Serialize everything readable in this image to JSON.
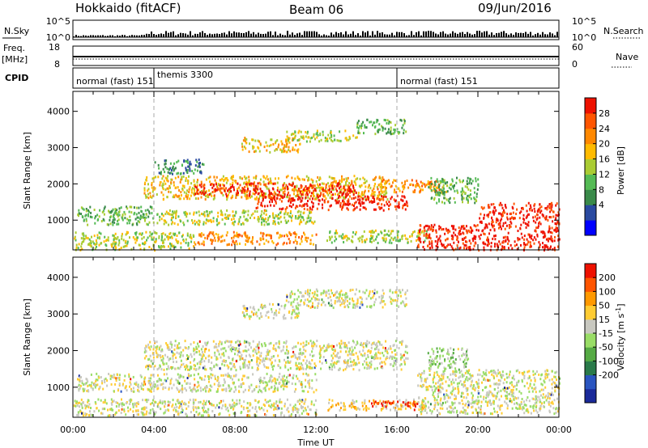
{
  "header": {
    "station": "Hokkaido (fitACF)",
    "beam": "Beam 06",
    "date": "09/Jun/2016"
  },
  "panels": {
    "nsky_label": "N.Sky",
    "nsearch_label": "N.Search",
    "nsky_ticks": [
      "10^5",
      "10^0"
    ],
    "nsearch_ticks": [
      "10^5",
      "10^0"
    ],
    "freq_label": "Freq.",
    "freq_unit": "[MHz]",
    "freq_ticks": [
      "18",
      "8"
    ],
    "nave_label": "Nave",
    "nave_ticks": [
      "60",
      "0"
    ],
    "cpid_label": "CPID",
    "cpid_segments": [
      {
        "label": "normal (fast) 151",
        "start_hour": 0
      },
      {
        "label": "themis 3300",
        "start_hour": 4
      },
      {
        "label": "normal (fast) 151",
        "start_hour": 16
      }
    ]
  },
  "chart_data": [
    {
      "type": "heatmap",
      "name": "power",
      "ylabel": "Slant Range [km]",
      "ylim": [
        180,
        4550
      ],
      "yticks": [
        1000,
        2000,
        3000,
        4000
      ],
      "xlim": [
        0,
        24
      ],
      "colorbar": {
        "label": "Power [dB]",
        "ticks": [
          "28",
          "24",
          "20",
          "16",
          "12",
          "8",
          "4"
        ],
        "colors": [
          "#0000ff",
          "#2a4aa0",
          "#3a8a4a",
          "#55bb55",
          "#aacc33",
          "#ffbb00",
          "#ff8800",
          "#ff5500",
          "#ee1100"
        ]
      },
      "regions": [
        {
          "x": [
            8.3,
            11.2
          ],
          "y": [
            2900,
            3300
          ],
          "level": 5
        },
        {
          "x": [
            10.5,
            14.0
          ],
          "y": [
            3200,
            3500
          ],
          "level": 4
        },
        {
          "x": [
            14.0,
            16.5
          ],
          "y": [
            3400,
            3800
          ],
          "level": 3
        },
        {
          "x": [
            3.5,
            15.5
          ],
          "y": [
            1600,
            2250
          ],
          "level": 5
        },
        {
          "x": [
            6.0,
            14.0
          ],
          "y": [
            1700,
            2050
          ],
          "level": 8
        },
        {
          "x": [
            9.0,
            16.5
          ],
          "y": [
            1300,
            1700
          ],
          "level": 8
        },
        {
          "x": [
            15.0,
            18.5
          ],
          "y": [
            1800,
            2150
          ],
          "level": 6
        },
        {
          "x": [
            0.2,
            4.0
          ],
          "y": [
            900,
            1400
          ],
          "level": 3
        },
        {
          "x": [
            4.0,
            12.0
          ],
          "y": [
            900,
            1300
          ],
          "level": 4
        },
        {
          "x": [
            0,
            6.0
          ],
          "y": [
            200,
            700
          ],
          "level": 4
        },
        {
          "x": [
            6.0,
            12.0
          ],
          "y": [
            350,
            700
          ],
          "level": 6
        },
        {
          "x": [
            12.5,
            17.5
          ],
          "y": [
            400,
            750
          ],
          "level": 4
        },
        {
          "x": [
            17.0,
            24.0
          ],
          "y": [
            200,
            900
          ],
          "level": 8
        },
        {
          "x": [
            20.0,
            24.0
          ],
          "y": [
            900,
            1500
          ],
          "level": 8
        },
        {
          "x": [
            17.5,
            20.0
          ],
          "y": [
            1500,
            2200
          ],
          "level": 3
        },
        {
          "x": [
            4.0,
            6.5
          ],
          "y": [
            2300,
            2700
          ],
          "level": 2
        }
      ]
    },
    {
      "type": "heatmap",
      "name": "velocity",
      "xlabel": "Time UT",
      "ylabel": "Slant Range [km]",
      "ylim": [
        180,
        4550
      ],
      "yticks": [
        1000,
        2000,
        3000,
        4000
      ],
      "xlim": [
        0,
        24
      ],
      "xticks": [
        "00:00",
        "04:00",
        "08:00",
        "12:00",
        "16:00",
        "20:00",
        "00:00"
      ],
      "colorbar": {
        "label": "Velocity [m s",
        "label_sup": "-1",
        "label_end": "]",
        "ticks": [
          "200",
          "100",
          "50",
          "15",
          "-15",
          "-50",
          "-100",
          "-200"
        ],
        "colors": [
          "#1a2a9a",
          "#2a55c0",
          "#2a7a4a",
          "#55aa44",
          "#99dd66",
          "#c8c8c0",
          "#ffcc33",
          "#ff9900",
          "#ff5500",
          "#ee1100"
        ]
      },
      "regions": [
        {
          "x": [
            8.3,
            11.2
          ],
          "y": [
            2900,
            3300
          ],
          "level": 5
        },
        {
          "x": [
            10.5,
            16.5
          ],
          "y": [
            3200,
            3700
          ],
          "level": 5
        },
        {
          "x": [
            3.5,
            16.5
          ],
          "y": [
            1500,
            2300
          ],
          "level": 5
        },
        {
          "x": [
            0.2,
            12.0
          ],
          "y": [
            900,
            1400
          ],
          "level": 5
        },
        {
          "x": [
            0,
            12.0
          ],
          "y": [
            250,
            700
          ],
          "level": 5
        },
        {
          "x": [
            12.5,
            17.5
          ],
          "y": [
            400,
            700
          ],
          "level": 6
        },
        {
          "x": [
            14.5,
            17.0
          ],
          "y": [
            500,
            650
          ],
          "level": 9
        },
        {
          "x": [
            17.0,
            24.0
          ],
          "y": [
            300,
            1500
          ],
          "level": 5
        },
        {
          "x": [
            17.5,
            19.5
          ],
          "y": [
            1500,
            2100
          ],
          "level": 4
        }
      ]
    }
  ]
}
